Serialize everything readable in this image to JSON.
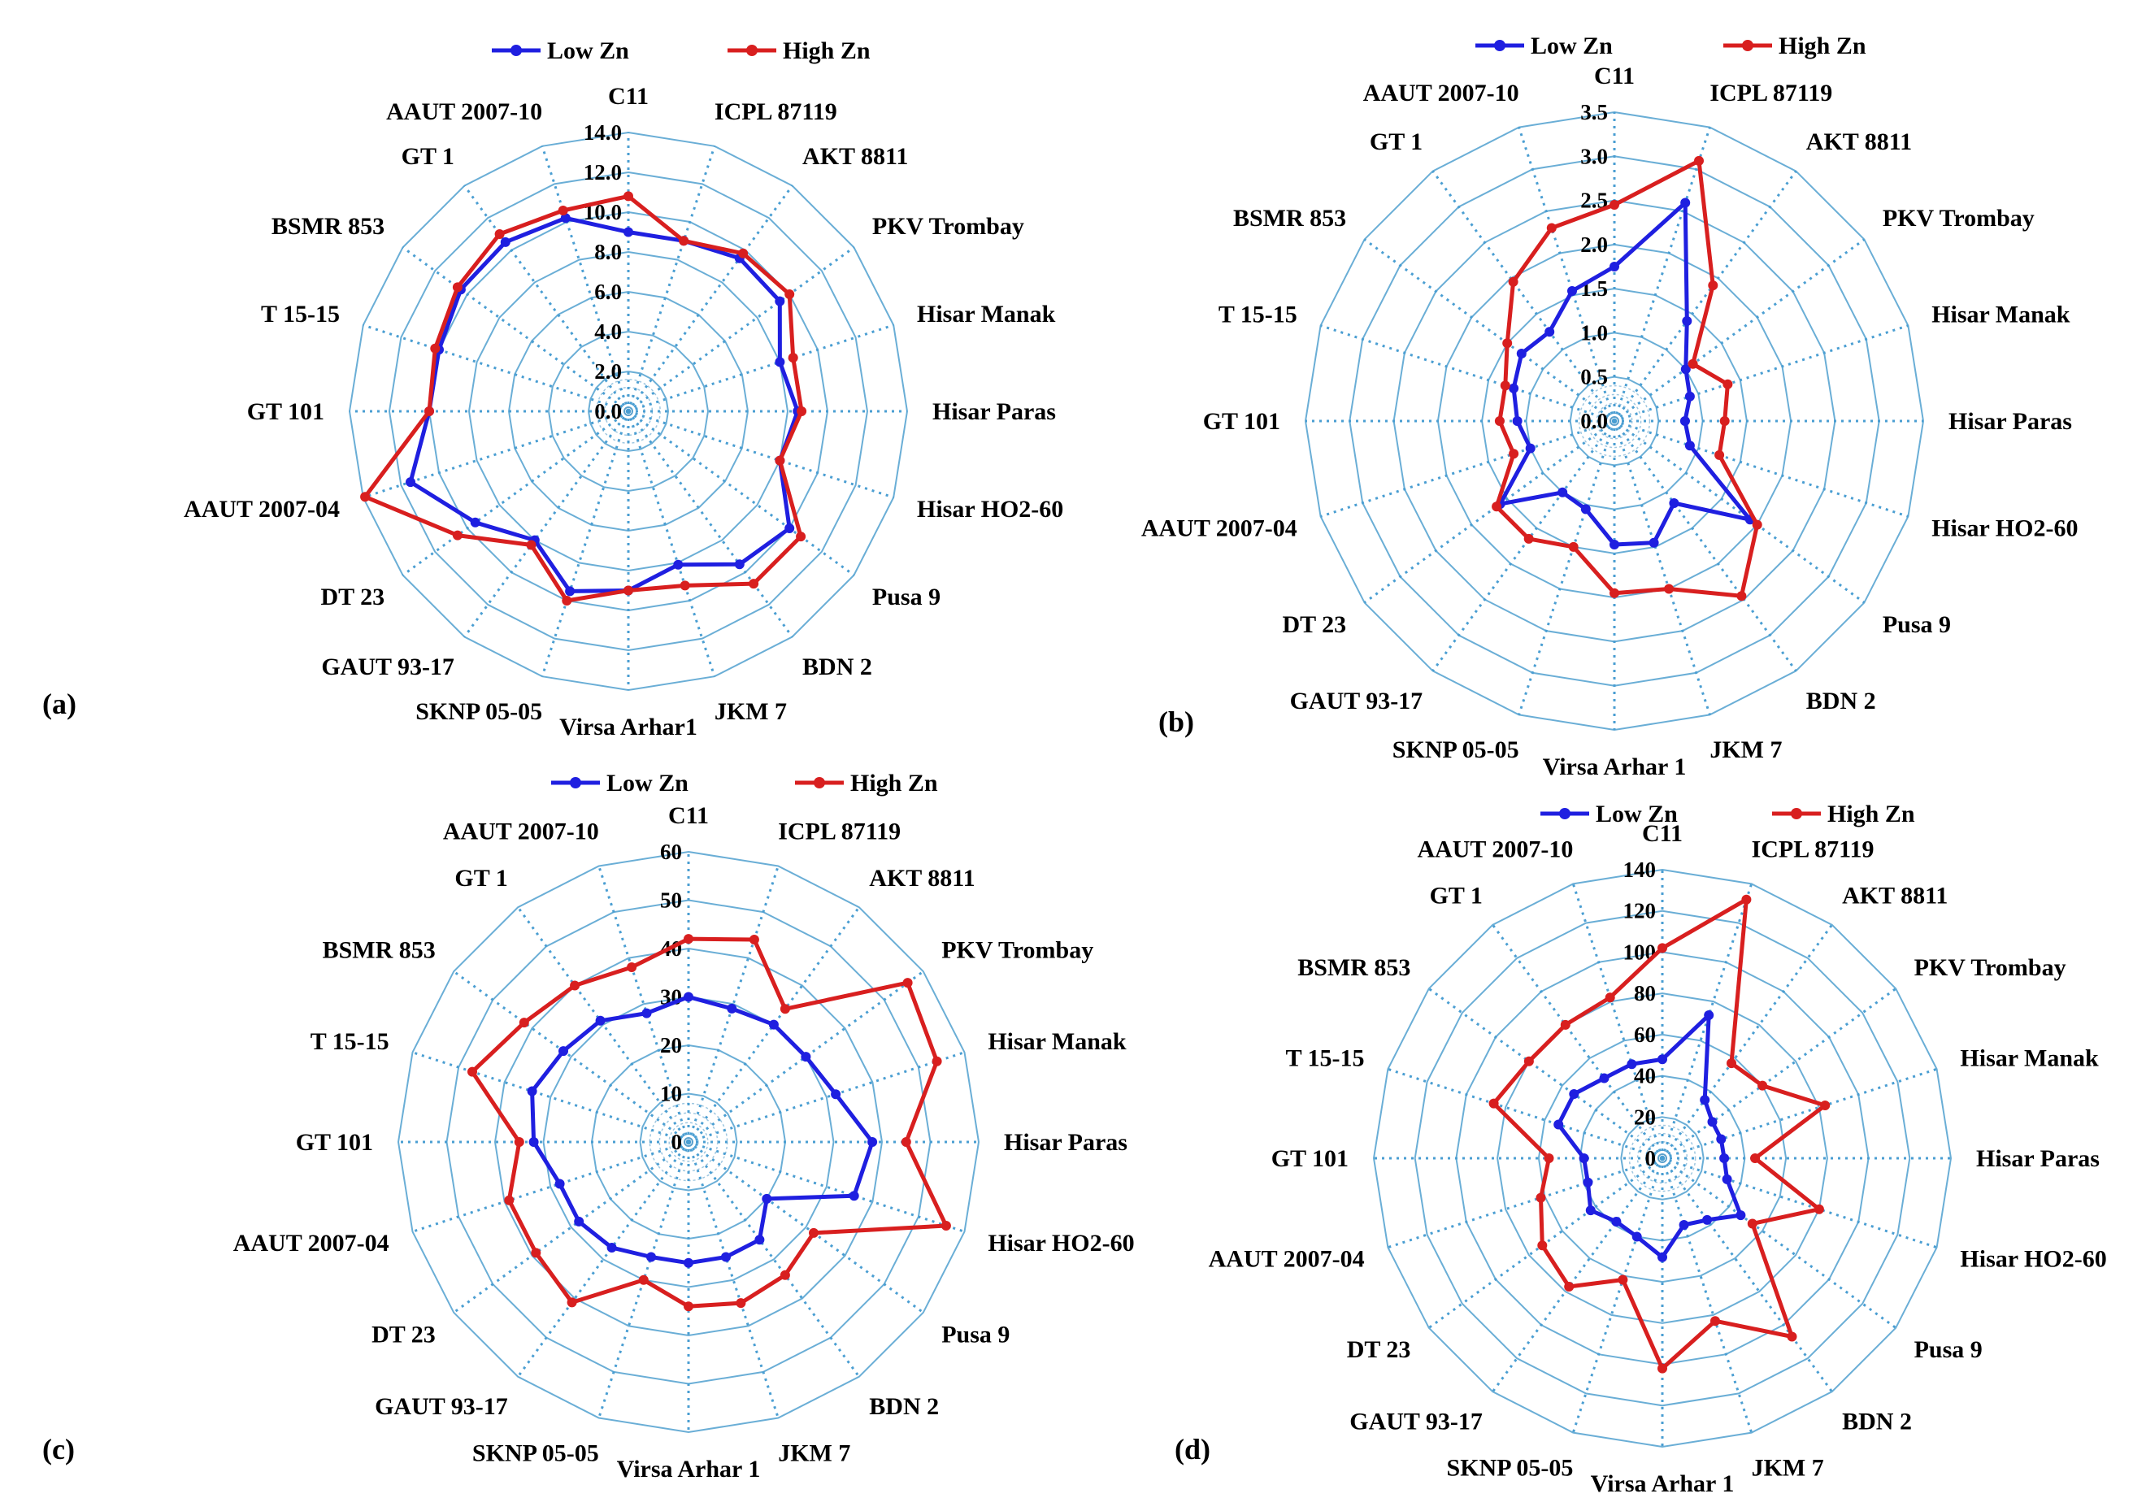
{
  "chart_data": [
    {
      "type": "radar",
      "panel_label": "(a)",
      "legend": [
        "Low Zn",
        "High Zn"
      ],
      "categories": [
        "C11",
        "ICPL 87119",
        "AKT 8811",
        "PKV Trombay",
        "Hisar Manak",
        "Hisar Paras",
        "Hisar HO2-60",
        "Pusa 9",
        "BDN 2",
        "JKM 7",
        "Virsa Arhar1",
        "SKNP 05-05",
        "GAUT 93-17",
        "DT 23",
        "AAUT 2007-04",
        "GT  101",
        "T 15-15",
        "BSMR 853",
        "GT 1",
        "AAUT 2007-10"
      ],
      "ticks": [
        "0.0",
        "2.0",
        "4.0",
        "6.0",
        "8.0",
        "10.0",
        "12.0",
        "14.0"
      ],
      "range": [
        0,
        14
      ],
      "series": [
        {
          "name": "Low Zn",
          "color": "#1f1fe0",
          "values": [
            9.0,
            9.0,
            9.5,
            9.4,
            8.0,
            8.5,
            8.0,
            10.0,
            9.5,
            8.1,
            9.0,
            9.5,
            8.0,
            9.5,
            11.5,
            10.0,
            10.0,
            10.4,
            10.5,
            10.2
          ]
        },
        {
          "name": "High Zn",
          "color": "#d81f1f",
          "values": [
            10.8,
            9.0,
            9.8,
            10.0,
            8.7,
            8.7,
            8.0,
            10.7,
            10.7,
            9.2,
            9.0,
            10.0,
            8.3,
            10.6,
            13.9,
            10.0,
            10.2,
            10.6,
            11.0,
            10.6
          ]
        }
      ]
    },
    {
      "type": "radar",
      "panel_label": "(b)",
      "legend": [
        "Low Zn",
        "High Zn"
      ],
      "categories": [
        "C11",
        "ICPL 87119",
        "AKT 8811",
        "PKV Trombay",
        "Hisar Manak",
        "Hisar Paras",
        "Hisar HO2-60",
        "Pusa 9",
        "BDN 2",
        "JKM 7",
        "Virsa Arhar 1",
        "SKNP 05-05",
        "GAUT 93-17",
        "DT 23",
        "AAUT 2007-04",
        "GT  101",
        "T 15-15",
        "BSMR 853",
        "GT 1",
        "AAUT 2007-10"
      ],
      "ticks": [
        "0.0",
        "0.5",
        "1.0",
        "1.5",
        "2.0",
        "2.5",
        "3.0",
        "3.5"
      ],
      "range": [
        0,
        3.5
      ],
      "series": [
        {
          "name": "Low Zn",
          "color": "#1f1fe0",
          "values": [
            1.75,
            2.6,
            1.4,
            1.0,
            0.9,
            0.8,
            0.9,
            1.9,
            1.15,
            1.45,
            1.4,
            1.05,
            1.0,
            1.6,
            1.0,
            1.1,
            1.2,
            1.3,
            1.25,
            1.55
          ]
        },
        {
          "name": "High Zn",
          "color": "#d81f1f",
          "values": [
            2.45,
            3.1,
            1.9,
            1.1,
            1.35,
            1.25,
            1.25,
            2.0,
            2.45,
            2.0,
            1.95,
            1.5,
            1.65,
            1.65,
            1.2,
            1.3,
            1.3,
            1.5,
            1.95,
            2.3
          ]
        }
      ]
    },
    {
      "type": "radar",
      "panel_label": "(c)",
      "legend": [
        "Low Zn",
        "High Zn"
      ],
      "categories": [
        "C11",
        "ICPL 87119",
        "AKT 8811",
        "PKV Trombay",
        "Hisar Manak",
        "Hisar Paras",
        "Hisar HO2-60",
        "Pusa 9",
        "BDN 2",
        "JKM 7",
        "Virsa Arhar 1",
        "SKNP 05-05",
        "GAUT 93-17",
        "DT 23",
        "AAUT 2007-04",
        "GT  101",
        "T 15-15",
        "BSMR 853",
        "GT 1",
        "AAUT 2007-10"
      ],
      "ticks": [
        "0",
        "10",
        "20",
        "30",
        "40",
        "50",
        "60"
      ],
      "range": [
        0,
        60
      ],
      "series": [
        {
          "name": "Low Zn",
          "color": "#1f1fe0",
          "values": [
            30.0,
            29.0,
            30.0,
            30.0,
            32.0,
            38.0,
            36.0,
            20.0,
            25.0,
            25.0,
            25.0,
            25.0,
            27.0,
            28.0,
            28.0,
            32.0,
            34.0,
            32.0,
            31.0,
            28.0
          ]
        },
        {
          "name": "High Zn",
          "color": "#d81f1f",
          "values": [
            42.0,
            44.0,
            34.0,
            56.0,
            54.0,
            45.0,
            56.0,
            32.0,
            34.0,
            35.0,
            34.0,
            30.0,
            41.0,
            39.0,
            39.0,
            35.0,
            47.0,
            42.0,
            40.0,
            38.0
          ]
        }
      ]
    },
    {
      "type": "radar",
      "panel_label": "(d)",
      "legend": [
        "Low Zn",
        "High Zn"
      ],
      "categories": [
        "C11",
        "ICPL 87119",
        "AKT 8811",
        "PKV Trombay",
        "Hisar Manak",
        "Hisar Paras",
        "Hisar HO2-60",
        "Pusa 9",
        "BDN 2",
        "JKM 7",
        "Virsa Arhar 1",
        "SKNP 05-05",
        "GAUT 93-17",
        "DT 23",
        "AAUT 2007-04",
        "GT  101",
        "T 15-15",
        "BSMR 853",
        "GT 1",
        "AAUT 2007-10"
      ],
      "ticks": [
        "0",
        "20",
        "40",
        "60",
        "80",
        "100",
        "120",
        "140"
      ],
      "range": [
        0,
        140
      ],
      "series": [
        {
          "name": "Low Zn",
          "color": "#1f1fe0",
          "values": [
            48.0,
            73.0,
            35.0,
            30.0,
            30.0,
            30.0,
            33.0,
            47.0,
            37.0,
            34.0,
            48.0,
            40.0,
            38.0,
            43.0,
            38.0,
            38.0,
            53.0,
            53.0,
            48.0,
            48.0
          ]
        },
        {
          "name": "High Zn",
          "color": "#d81f1f",
          "values": [
            102.0,
            132.0,
            57.0,
            60.0,
            83.0,
            45.0,
            80.0,
            54.0,
            107.0,
            83.0,
            102.0,
            62.0,
            77.0,
            72.0,
            62.0,
            55.0,
            86.0,
            80.0,
            80.0,
            82.0
          ]
        }
      ]
    }
  ]
}
